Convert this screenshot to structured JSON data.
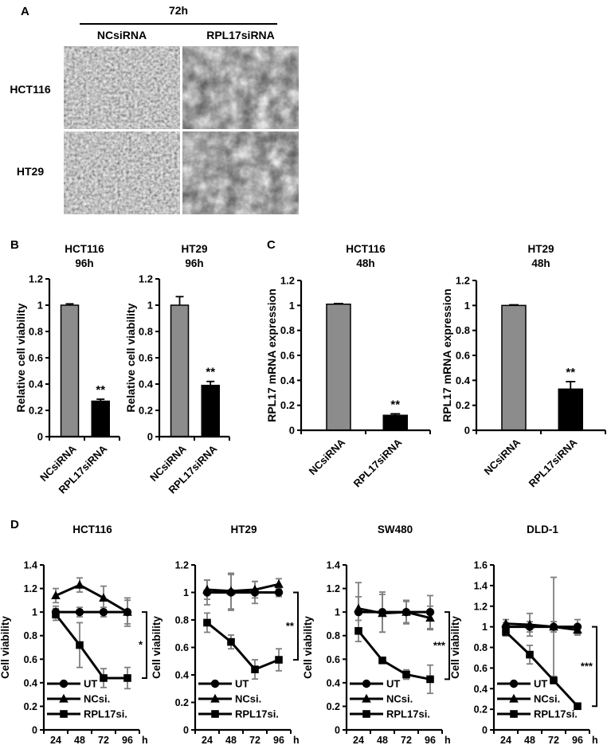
{
  "colors": {
    "bar_gray": "#8c8c8c",
    "bar_black": "#000000",
    "axis": "#000000",
    "error_bar_line_d": "#7f7f7f"
  },
  "panel_a": {
    "label": "A",
    "time_label": "72h",
    "col_labels": [
      "NCsiRNA",
      "RPL17siRNA"
    ],
    "row_labels": [
      "HCT116",
      "HT29"
    ],
    "images": [
      {
        "name": "HCT116 NCsiRNA phase-contrast micrograph",
        "density": "dense"
      },
      {
        "name": "HCT116 RPL17siRNA phase-contrast micrograph",
        "density": "sparse"
      },
      {
        "name": "HT29 NCsiRNA phase-contrast micrograph",
        "density": "dense"
      },
      {
        "name": "HT29 RPL17siRNA phase-contrast micrograph",
        "density": "sparse"
      }
    ]
  },
  "panel_b": {
    "label": "B"
  },
  "panel_c": {
    "label": "C"
  },
  "panel_d": {
    "label": "D"
  },
  "chart_data": [
    {
      "panel": "B",
      "type": "bar",
      "title": "HCT116",
      "subtitle": "96h",
      "ylabel": "Relative cell viability",
      "ylim": [
        0,
        1.2
      ],
      "ytick_step": 0.2,
      "categories": [
        "NCsiRNA",
        "RPL17siRNA"
      ],
      "values": [
        1.0,
        0.27
      ],
      "errors": [
        0.01,
        0.015
      ],
      "bar_colors": [
        "#8c8c8c",
        "#000000"
      ],
      "sig_label": "**",
      "sig_on": 1
    },
    {
      "panel": "B",
      "type": "bar",
      "title": "HT29",
      "subtitle": "96h",
      "ylabel": "Relative cell viability",
      "ylim": [
        0,
        1.2
      ],
      "ytick_step": 0.2,
      "categories": [
        "NCsiRNA",
        "RPL17siRNA"
      ],
      "values": [
        1.0,
        0.39
      ],
      "errors": [
        0.065,
        0.03
      ],
      "bar_colors": [
        "#8c8c8c",
        "#000000"
      ],
      "sig_label": "**",
      "sig_on": 1
    },
    {
      "panel": "C",
      "type": "bar",
      "title": "HCT116",
      "subtitle": "48h",
      "ylabel": "RPL17 mRNA expression",
      "ylim": [
        0,
        1.2
      ],
      "ytick_step": 0.2,
      "categories": [
        "NCsiRNA",
        "RPL17siRNA"
      ],
      "values": [
        1.01,
        0.12
      ],
      "errors": [
        0.005,
        0.012
      ],
      "bar_colors": [
        "#8c8c8c",
        "#000000"
      ],
      "sig_label": "**",
      "sig_on": 1
    },
    {
      "panel": "C",
      "type": "bar",
      "title": "HT29",
      "subtitle": "48h",
      "ylabel": "RPL17 mRNA expression",
      "ylim": [
        0,
        1.2
      ],
      "ytick_step": 0.2,
      "categories": [
        "NCsiRNA",
        "RPL17siRNA"
      ],
      "values": [
        1.0,
        0.33
      ],
      "errors": [
        0.005,
        0.06
      ],
      "bar_colors": [
        "#8c8c8c",
        "#000000"
      ],
      "sig_label": "**",
      "sig_on": 1
    },
    {
      "panel": "D",
      "type": "line",
      "title": "HCT116",
      "ylabel": "Cell viability",
      "ylim": [
        0,
        1.4
      ],
      "ytick_step": 0.2,
      "x": [
        24,
        48,
        72,
        96
      ],
      "x_unit": "h",
      "series": [
        {
          "name": "UT",
          "marker": "circle",
          "values": [
            1.0,
            1.0,
            1.0,
            1.0
          ],
          "errors": [
            0.05,
            0.04,
            0.04,
            0.1
          ]
        },
        {
          "name": "NCsi.",
          "marker": "triangle",
          "values": [
            1.14,
            1.23,
            1.12,
            1.0
          ],
          "errors": [
            0.06,
            0.06,
            0.1,
            0.12
          ]
        },
        {
          "name": "RPL17si.",
          "marker": "square",
          "values": [
            0.98,
            0.72,
            0.44,
            0.44
          ],
          "errors": [
            0.05,
            0.19,
            0.08,
            0.09
          ]
        }
      ],
      "sig_label": "*"
    },
    {
      "panel": "D",
      "type": "line",
      "title": "HT29",
      "ylabel": "Cell viability",
      "ylim": [
        0,
        1.2
      ],
      "ytick_step": 0.2,
      "x": [
        24,
        48,
        72,
        96
      ],
      "x_unit": "h",
      "series": [
        {
          "name": "UT",
          "marker": "circle",
          "values": [
            1.0,
            1.0,
            1.0,
            1.0
          ],
          "errors": [
            0.09,
            0.13,
            0.08,
            0.03
          ]
        },
        {
          "name": "NCsi.",
          "marker": "triangle",
          "values": [
            1.02,
            1.01,
            1.02,
            1.06
          ],
          "errors": [
            0.07,
            0.13,
            0.06,
            0.04
          ]
        },
        {
          "name": "RPL17si.",
          "marker": "square",
          "values": [
            0.78,
            0.64,
            0.44,
            0.51
          ],
          "errors": [
            0.07,
            0.05,
            0.07,
            0.08
          ]
        }
      ],
      "sig_label": "**"
    },
    {
      "panel": "D",
      "type": "line",
      "title": "SW480",
      "ylabel": "Cell viability",
      "ylim": [
        0,
        1.4
      ],
      "ytick_step": 0.2,
      "x": [
        24,
        48,
        72,
        96
      ],
      "x_unit": "h",
      "series": [
        {
          "name": "UT",
          "marker": "circle",
          "values": [
            1.0,
            1.0,
            1.0,
            1.0
          ],
          "errors": [
            0.25,
            0.17,
            0.09,
            0.14
          ]
        },
        {
          "name": "NCsi.",
          "marker": "triangle",
          "values": [
            1.03,
            0.99,
            1.0,
            0.95
          ],
          "errors": [
            0.1,
            0.16,
            0.1,
            0.1
          ]
        },
        {
          "name": "RPL17si.",
          "marker": "square",
          "values": [
            0.84,
            0.59,
            0.47,
            0.43
          ],
          "errors": [
            0.02,
            0.02,
            0.04,
            0.12
          ]
        }
      ],
      "sig_label": "***"
    },
    {
      "panel": "D",
      "type": "line",
      "title": "DLD-1",
      "ylabel": "Cell viability",
      "ylim": [
        0,
        1.6
      ],
      "ytick_step": 0.2,
      "x": [
        24,
        48,
        72,
        96
      ],
      "x_unit": "h",
      "series": [
        {
          "name": "UT",
          "marker": "circle",
          "values": [
            1.0,
            1.0,
            1.0,
            1.0
          ],
          "errors": [
            0.04,
            0.05,
            0.48,
            0.07
          ]
        },
        {
          "name": "NCsi.",
          "marker": "triangle",
          "values": [
            1.03,
            1.02,
            1.0,
            0.97
          ],
          "errors": [
            0.04,
            0.11,
            0.05,
            0.05
          ]
        },
        {
          "name": "RPL17si.",
          "marker": "square",
          "values": [
            0.95,
            0.73,
            0.48,
            0.23
          ],
          "errors": [
            0.04,
            0.09,
            0.03,
            0.03
          ]
        }
      ],
      "sig_label": "***"
    }
  ]
}
